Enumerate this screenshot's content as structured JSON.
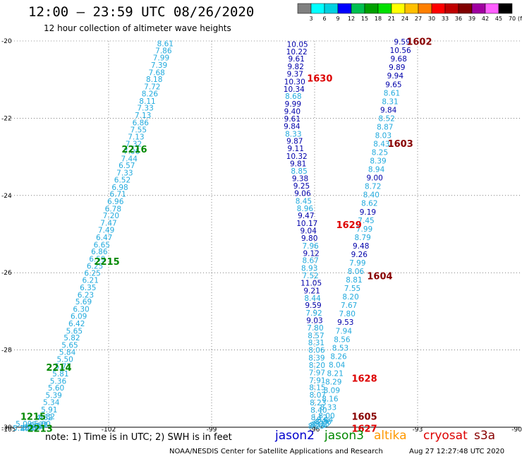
{
  "header": {
    "title": "12:00 — 23:59 UTC 08/26/2020",
    "subtitle": "12 hour collection of altimeter wave heights"
  },
  "colorbar": {
    "unit_label": "(ft)",
    "bins": [
      {
        "label": "3",
        "color": "#808080"
      },
      {
        "label": "6",
        "color": "#00ffff"
      },
      {
        "label": "9",
        "color": "#00d0e0"
      },
      {
        "label": "12",
        "color": "#0000ff"
      },
      {
        "label": "15",
        "color": "#00c050"
      },
      {
        "label": "18",
        "color": "#00a000"
      },
      {
        "label": "21",
        "color": "#00e000"
      },
      {
        "label": "24",
        "color": "#ffff00"
      },
      {
        "label": "27",
        "color": "#ffc000"
      },
      {
        "label": "30",
        "color": "#ff8000"
      },
      {
        "label": "33",
        "color": "#ff0000"
      },
      {
        "label": "36",
        "color": "#c00000"
      },
      {
        "label": "39",
        "color": "#800000"
      },
      {
        "label": "42",
        "color": "#a000a0"
      },
      {
        "label": "45",
        "color": "#ff60ff"
      },
      {
        "label": "70",
        "color": "#000000"
      }
    ]
  },
  "footer": {
    "note": "note:  1) Time is in UTC;  2) SWH is in feet",
    "missions": [
      {
        "name": "jason2",
        "color": "#0000cc"
      },
      {
        "name": "jason3",
        "color": "#008800"
      },
      {
        "name": "altika",
        "color": "#ff9900"
      },
      {
        "name": "cryosat",
        "color": "#dd0000"
      },
      {
        "name": "s3a",
        "color": "#880000"
      }
    ],
    "credit": "NOAA/NESDIS Center for Satellite Applications and Research",
    "timestamp": "Aug 27 12:27:48 UTC 2020"
  },
  "chart_data": {
    "type": "scatter",
    "xlim": [
      -105,
      -90
    ],
    "ylim": [
      -30,
      -20
    ],
    "x_ticks": [
      "-105",
      "-102",
      "-99",
      "-96",
      "-93",
      "-90"
    ],
    "x_tick_values": [
      -105,
      -102,
      -99,
      -96,
      -93,
      -90
    ],
    "y_ticks": [
      "-20",
      "-22",
      "-24",
      "-26",
      "-28",
      "-30"
    ],
    "y_tick_values": [
      -20,
      -22,
      -24,
      -26,
      -28,
      -30
    ],
    "grid": true,
    "swh_colors": {
      "lt9": "#22aadd",
      "9to12": "#0000aa"
    },
    "series": [
      {
        "x": [
          -100.35,
          -100.4,
          -100.47,
          -100.53,
          -100.6,
          -100.67,
          -100.73,
          -100.8,
          -100.87,
          -100.93,
          -101.0,
          -101.07,
          -101.13,
          -101.2,
          -101.27,
          -101.33,
          -101.4,
          -101.47,
          -101.53,
          -101.6,
          -101.67,
          -101.73,
          -101.8,
          -101.87,
          -101.93,
          -102.0,
          -102.07,
          -102.13,
          -102.2,
          -102.27,
          -102.33,
          -102.4,
          -102.47,
          -102.53,
          -102.6,
          -102.67,
          -102.73,
          -102.8,
          -102.87,
          -102.93,
          -103.0,
          -103.07,
          -103.13,
          -103.2,
          -103.27,
          -103.33,
          -103.4,
          -103.47,
          -103.53,
          -103.6,
          -103.67,
          -103.73,
          -103.8,
          -103.87,
          -103.93,
          -104.0,
          -104.07,
          -104.13,
          -104.2,
          -104.27,
          -104.33,
          -104.47,
          -104.55
        ],
        "y": [
          -20.06,
          -20.25,
          -20.43,
          -20.62,
          -20.81,
          -20.99,
          -21.18,
          -21.36,
          -21.55,
          -21.73,
          -21.92,
          -22.11,
          -22.29,
          -22.48,
          -22.66,
          -22.85,
          -23.04,
          -23.22,
          -23.41,
          -23.59,
          -23.78,
          -23.96,
          -24.15,
          -24.34,
          -24.52,
          -24.71,
          -24.89,
          -25.08,
          -25.27,
          -25.45,
          -25.64,
          -25.82,
          -26.01,
          -26.19,
          -26.38,
          -26.57,
          -26.75,
          -26.94,
          -27.12,
          -27.31,
          -27.5,
          -27.68,
          -27.87,
          -28.05,
          -28.24,
          -28.42,
          -28.61,
          -28.8,
          -28.98,
          -29.17,
          -29.35,
          -29.54,
          -29.72,
          -29.74,
          -29.91,
          -29.93,
          -29.95,
          -29.97,
          -29.99,
          -30.01,
          -30.03,
          -29.91,
          -30.02
        ],
        "labels": [
          "8.61",
          "7.86",
          "7.99",
          "7.39",
          "7.68",
          "8.18",
          "7.72",
          "8.26",
          "8.11",
          "7.33",
          "7.13",
          "6.86",
          "7.55",
          "7.13",
          "7.32",
          "7.06",
          "7.44",
          "6.57",
          "7.33",
          "6.52",
          "6.98",
          "6.71",
          "6.96",
          "6.78",
          "7.20",
          "7.47",
          "7.49",
          "6.47",
          "6.65",
          "6.86",
          "6.59",
          "6.25",
          "6.25",
          "6.21",
          "6.35",
          "6.23",
          "5.69",
          "6.30",
          "6.09",
          "6.42",
          "5.65",
          "5.82",
          "5.65",
          "5.84",
          "5.50",
          "5.77",
          "5.81",
          "5.36",
          "5.60",
          "5.39",
          "5.34",
          "5.91",
          "4.82",
          "4.62",
          "5.00",
          "5.21",
          "5.10",
          "4.95",
          "5.05",
          "5.15",
          "4.90",
          "5.09",
          "5.20"
        ]
      },
      {
        "x": [
          -96.5,
          -96.52,
          -96.53,
          -96.55,
          -96.57,
          -96.58,
          -96.6,
          -96.62,
          -96.63,
          -96.65,
          -96.65,
          -96.66,
          -96.62,
          -96.58,
          -96.55,
          -96.52,
          -96.48,
          -96.45,
          -96.42,
          -96.38,
          -96.35,
          -96.32,
          -96.28,
          -96.25,
          -96.22,
          -96.18,
          -96.15,
          -96.12,
          -96.1,
          -96.12,
          -96.15,
          -96.12,
          -96.1,
          -96.08,
          -96.06,
          -96.04,
          -96.02,
          -96.0,
          -95.98,
          -95.96,
          -95.95,
          -95.94,
          -95.94,
          -95.93,
          -95.93,
          -95.92,
          -95.92,
          -95.91,
          -95.9,
          -95.88,
          -95.87
        ],
        "y": [
          -20.08,
          -20.27,
          -20.46,
          -20.66,
          -20.85,
          -21.05,
          -21.24,
          -21.43,
          -21.63,
          -21.82,
          -22.01,
          -22.2,
          -22.4,
          -22.59,
          -22.78,
          -22.98,
          -23.17,
          -23.36,
          -23.56,
          -23.75,
          -23.94,
          -24.14,
          -24.33,
          -24.52,
          -24.72,
          -24.91,
          -25.1,
          -25.3,
          -25.49,
          -25.68,
          -25.88,
          -26.07,
          -26.26,
          -26.46,
          -26.65,
          -26.84,
          -27.04,
          -27.23,
          -27.42,
          -27.62,
          -27.81,
          -28.0,
          -28.2,
          -28.39,
          -28.58,
          -28.78,
          -28.97,
          -29.16,
          -29.36,
          -29.55,
          -29.74
        ],
        "labels": [
          "10.05",
          "10.22",
          "9.61",
          "9.82",
          "9.37",
          "10.30",
          "10.34",
          "8.68",
          "9.99",
          "9.40",
          "9.61",
          "9.84",
          "8.33",
          "9.87",
          "9.11",
          "10.32",
          "9.81",
          "8.85",
          "9.38",
          "9.25",
          "9.06",
          "8.45",
          "8.96",
          "9.47",
          "10.17",
          "9.04",
          "9.80",
          "7.96",
          "9.12",
          "8.67",
          "8.93",
          "7.52",
          "11.05",
          "9.21",
          "8.44",
          "9.59",
          "7.92",
          "9.03",
          "7.80",
          "8.57",
          "8.31",
          "8.06",
          "8.39",
          "8.20",
          "7.97",
          "7.91",
          "8.15",
          "8.07",
          "8.23",
          "8.40",
          "8.12"
        ]
      },
      {
        "x": [
          -93.45,
          -93.5,
          -93.55,
          -93.6,
          -93.65,
          -93.7,
          -93.75,
          -93.8,
          -93.85,
          -93.9,
          -93.95,
          -94.0,
          -94.05,
          -94.1,
          -94.15,
          -94.2,
          -94.25,
          -94.3,
          -94.35,
          -94.4,
          -94.45,
          -94.5,
          -94.55,
          -94.6,
          -94.65,
          -94.7,
          -94.75,
          -94.8,
          -94.85,
          -94.9,
          -94.95,
          -95.0,
          -95.05,
          -95.1,
          -95.15,
          -95.2,
          -95.25,
          -95.3,
          -95.35,
          -95.4,
          -95.45,
          -95.5,
          -95.55,
          -95.6,
          -95.65,
          -95.7,
          -95.75,
          -95.8,
          -95.85,
          -95.9,
          -95.95
        ],
        "y": [
          -20.02,
          -20.24,
          -20.46,
          -20.68,
          -20.9,
          -21.12,
          -21.34,
          -21.56,
          -21.78,
          -22.0,
          -22.22,
          -22.44,
          -22.66,
          -22.88,
          -23.1,
          -23.32,
          -23.54,
          -23.76,
          -23.98,
          -24.2,
          -24.42,
          -24.64,
          -24.86,
          -25.08,
          -25.3,
          -25.52,
          -25.74,
          -25.96,
          -26.18,
          -26.4,
          -26.62,
          -26.84,
          -27.06,
          -27.28,
          -27.5,
          -27.72,
          -27.94,
          -28.16,
          -28.38,
          -28.6,
          -28.82,
          -29.04,
          -29.26,
          -29.48,
          -29.7,
          -29.8,
          -29.85,
          -29.9,
          -29.92,
          -29.94,
          -29.96
        ],
        "labels": [
          "9.59",
          "10.56",
          "9.68",
          "9.89",
          "9.94",
          "9.65",
          "8.61",
          "8.31",
          "9.84",
          "8.52",
          "8.87",
          "8.03",
          "8.43",
          "8.25",
          "8.39",
          "8.94",
          "9.00",
          "8.72",
          "8.40",
          "8.62",
          "9.19",
          "7.45",
          "7.99",
          "8.79",
          "9.48",
          "9.26",
          "7.99",
          "8.06",
          "8.81",
          "7.55",
          "8.20",
          "7.67",
          "7.80",
          "9.53",
          "7.94",
          "8.56",
          "8.53",
          "8.26",
          "8.04",
          "8.21",
          "8.29",
          "8.09",
          "8.16",
          "8.33",
          "8.00",
          "8.44",
          "8.36",
          "8.18",
          "8.02",
          "8.11",
          "8.25"
        ]
      }
    ],
    "time_labels": [
      {
        "text": "2216",
        "x": -101.25,
        "y": -22.8,
        "color": "#008800"
      },
      {
        "text": "2215",
        "x": -102.05,
        "y": -25.7,
        "color": "#008800"
      },
      {
        "text": "2214",
        "x": -103.45,
        "y": -28.45,
        "color": "#008800"
      },
      {
        "text": "1215",
        "x": -104.2,
        "y": -29.72,
        "color": "#008800"
      },
      {
        "text": "2213",
        "x": -104.0,
        "y": -30.03,
        "color": "#008800"
      },
      {
        "text": "1630",
        "x": -95.85,
        "y": -20.96,
        "color": "#dd0000"
      },
      {
        "text": "1629",
        "x": -95.0,
        "y": -24.75,
        "color": "#dd0000"
      },
      {
        "text": "1628",
        "x": -94.55,
        "y": -28.73,
        "color": "#dd0000"
      },
      {
        "text": "1627",
        "x": -94.55,
        "y": -30.03,
        "color": "#dd0000"
      },
      {
        "text": "1602",
        "x": -92.95,
        "y": -20.01,
        "color": "#880000"
      },
      {
        "text": "1603",
        "x": -93.5,
        "y": -22.65,
        "color": "#880000"
      },
      {
        "text": "1604",
        "x": -94.1,
        "y": -26.08,
        "color": "#880000"
      },
      {
        "text": "1605",
        "x": -94.55,
        "y": -29.72,
        "color": "#880000"
      }
    ]
  }
}
